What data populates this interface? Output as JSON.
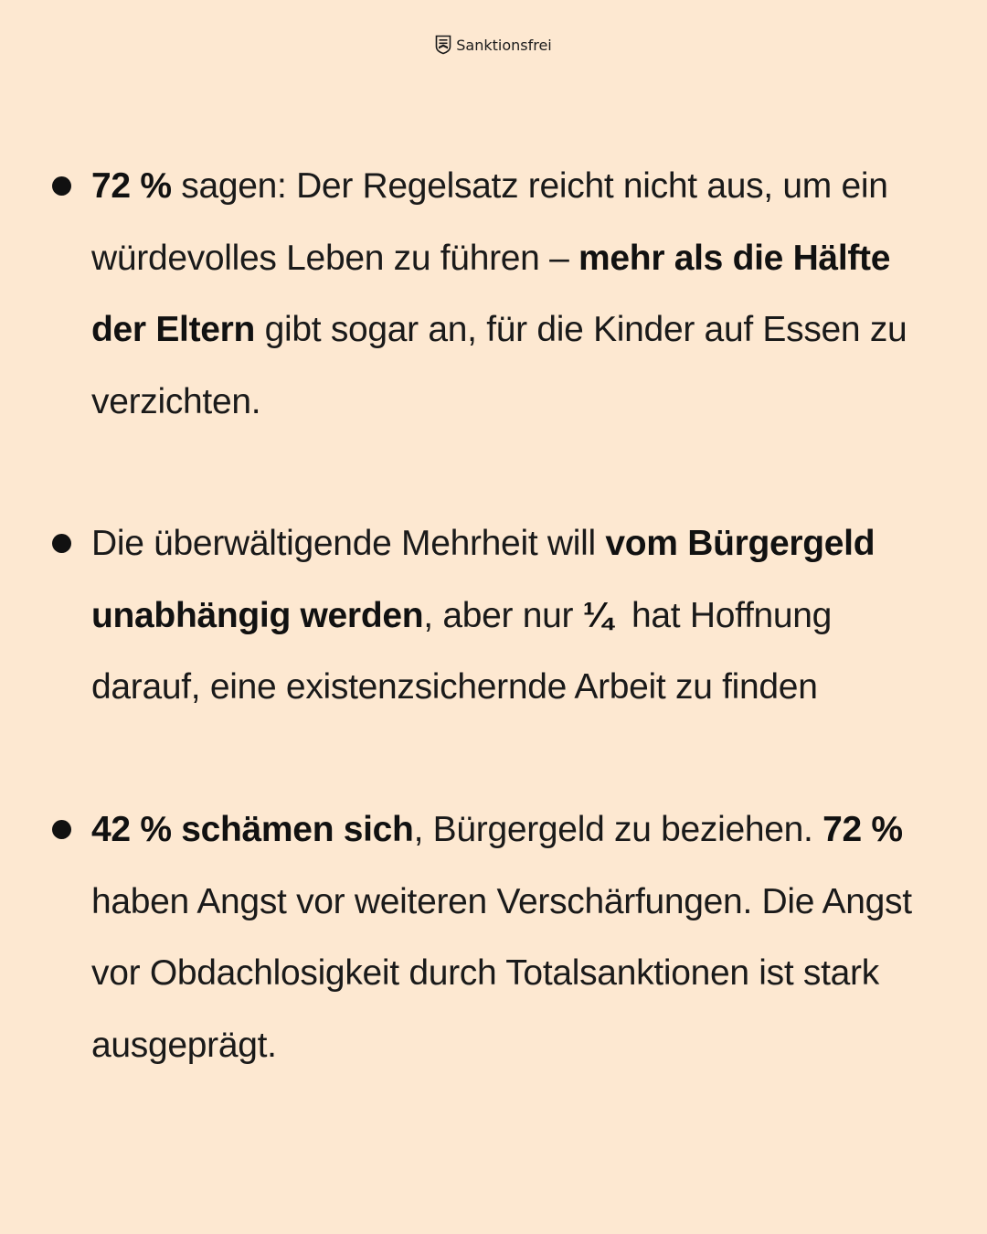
{
  "header": {
    "brand_name": "Sanktionsfrei",
    "brand_icon": "shield-logo-icon"
  },
  "bullets": [
    {
      "t1": "72 %",
      "t2": " sagen: Der Regelsatz reicht nicht aus, um ein würdevolles Leben zu führen – ",
      "t3": "mehr als die Hälfte der Eltern",
      "t4": " gibt sogar an, für die Kinder auf Essen zu verzichten."
    },
    {
      "t1": "Die überwältigende Mehrheit will ",
      "t2": "vom Bürgergeld unabhängig werden",
      "t3": ", aber nur ",
      "t4": "¼",
      "t5": "  hat Hoffnung darauf, eine existenzsichernde Arbeit zu finden"
    },
    {
      "t1": "42 % schämen sich",
      "t2": ", Bürgergeld zu beziehen. ",
      "t3": "72 %",
      "t4": " haben Angst vor weiteren Verschärfungen. Die Angst vor Obdachlosigkeit durch Totalsanktionen ist stark ausgeprägt."
    }
  ],
  "colors": {
    "background": "#fde8d1",
    "text": "#1a1a1a"
  }
}
